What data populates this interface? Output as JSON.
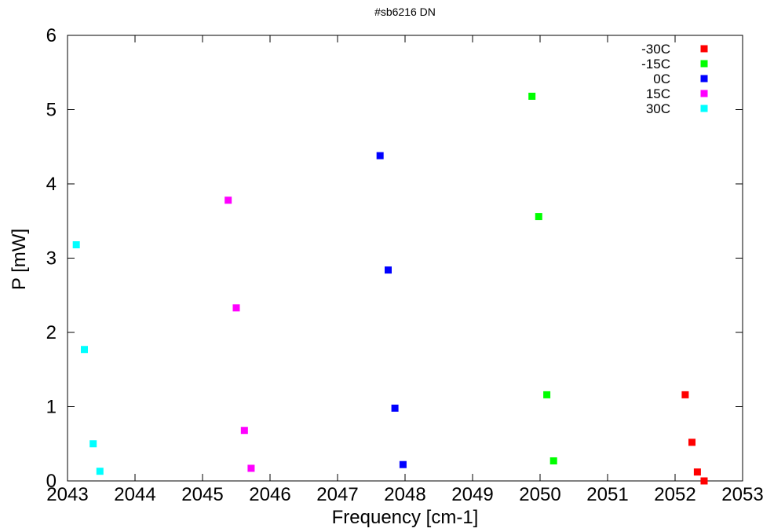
{
  "chart_data": {
    "type": "scatter",
    "title": "#sb6216 DN",
    "xlabel": "Frequency [cm-1]",
    "ylabel": "P [mW]",
    "xlim": [
      2043,
      2053
    ],
    "ylim": [
      0,
      6
    ],
    "x_ticks": [
      2043,
      2044,
      2045,
      2046,
      2047,
      2048,
      2049,
      2050,
      2051,
      2052,
      2053
    ],
    "y_ticks": [
      0,
      1,
      2,
      3,
      4,
      5,
      6
    ],
    "grid": false,
    "legend_position": "top-right",
    "series": [
      {
        "name": "-30C",
        "color": "#ff0000",
        "x": [
          2052.15,
          2052.25,
          2052.33,
          2052.43
        ],
        "y": [
          1.16,
          0.52,
          0.12,
          0.0
        ]
      },
      {
        "name": "-15C",
        "color": "#00ff00",
        "x": [
          2049.88,
          2049.98,
          2050.1,
          2050.2
        ],
        "y": [
          5.18,
          3.56,
          1.16,
          0.27
        ]
      },
      {
        "name": "0C",
        "color": "#0000ff",
        "x": [
          2047.63,
          2047.75,
          2047.85,
          2047.97
        ],
        "y": [
          4.38,
          2.84,
          0.98,
          0.22
        ]
      },
      {
        "name": "15C",
        "color": "#ff00ff",
        "x": [
          2045.38,
          2045.5,
          2045.62,
          2045.72
        ],
        "y": [
          3.78,
          2.33,
          0.68,
          0.17
        ]
      },
      {
        "name": "30C",
        "color": "#00ffff",
        "x": [
          2043.13,
          2043.25,
          2043.38,
          2043.48
        ],
        "y": [
          3.18,
          1.77,
          0.5,
          0.13
        ]
      }
    ]
  }
}
